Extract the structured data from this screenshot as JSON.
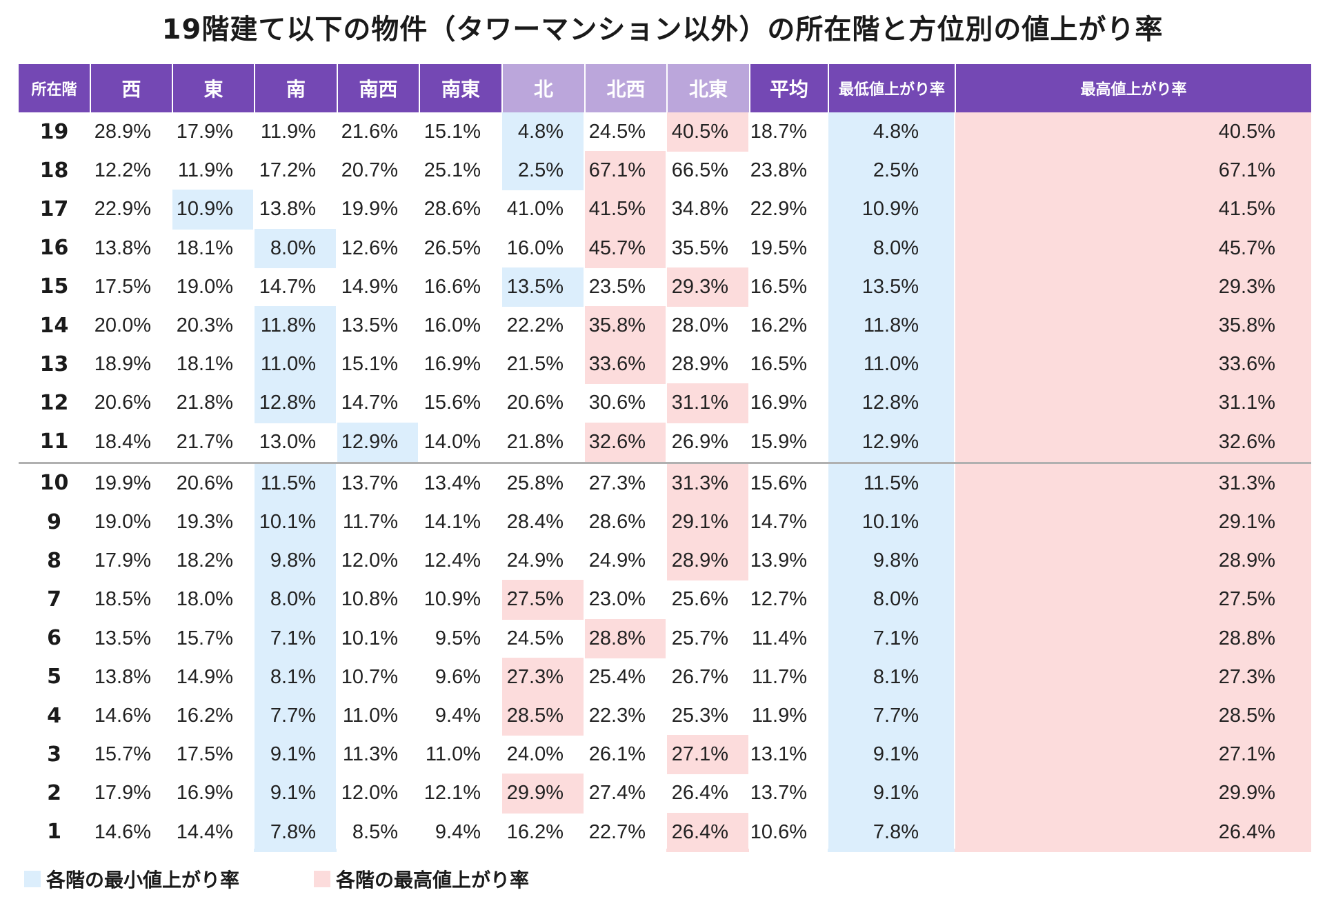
{
  "title": "19階建て以下の物件（タワーマンション以外）の所在階と方位別の値上がり率",
  "colors": {
    "header_dark": "#7448b4",
    "header_light": "#bba6db",
    "min_highlight": "#dceefc",
    "max_highlight": "#fcdcdc",
    "separator": "#b0b0b0"
  },
  "legend": {
    "min_label": "各階の最小値上がり率",
    "max_label": "各階の最高値上がり率"
  },
  "chart_data": {
    "type": "table",
    "title": "19階建て以下の物件（タワーマンション以外）の所在階と方位別の値上がり率",
    "columns": [
      "所在階",
      "西",
      "東",
      "南",
      "南西",
      "南東",
      "北",
      "北西",
      "北東",
      "平均",
      "最低値上がり率",
      "最高値上がり率"
    ],
    "rows": [
      {
        "floor": "19",
        "values": [
          "28.9%",
          "17.9%",
          "11.9%",
          "21.6%",
          "15.1%",
          "4.8%",
          "24.5%",
          "40.5%",
          "18.7%",
          "4.8%",
          "40.5%"
        ],
        "min_col": 5,
        "max_col": 7
      },
      {
        "floor": "18",
        "values": [
          "12.2%",
          "11.9%",
          "17.2%",
          "20.7%",
          "25.1%",
          "2.5%",
          "67.1%",
          "66.5%",
          "23.8%",
          "2.5%",
          "67.1%"
        ],
        "min_col": 5,
        "max_col": 6
      },
      {
        "floor": "17",
        "values": [
          "22.9%",
          "10.9%",
          "13.8%",
          "19.9%",
          "28.6%",
          "41.0%",
          "41.5%",
          "34.8%",
          "22.9%",
          "10.9%",
          "41.5%"
        ],
        "min_col": 1,
        "max_col": 6
      },
      {
        "floor": "16",
        "values": [
          "13.8%",
          "18.1%",
          "8.0%",
          "12.6%",
          "26.5%",
          "16.0%",
          "45.7%",
          "35.5%",
          "19.5%",
          "8.0%",
          "45.7%"
        ],
        "min_col": 2,
        "max_col": 6
      },
      {
        "floor": "15",
        "values": [
          "17.5%",
          "19.0%",
          "14.7%",
          "14.9%",
          "16.6%",
          "13.5%",
          "23.5%",
          "29.3%",
          "16.5%",
          "13.5%",
          "29.3%"
        ],
        "min_col": 5,
        "max_col": 7
      },
      {
        "floor": "14",
        "values": [
          "20.0%",
          "20.3%",
          "11.8%",
          "13.5%",
          "16.0%",
          "22.2%",
          "35.8%",
          "28.0%",
          "16.2%",
          "11.8%",
          "35.8%"
        ],
        "min_col": 2,
        "max_col": 6
      },
      {
        "floor": "13",
        "values": [
          "18.9%",
          "18.1%",
          "11.0%",
          "15.1%",
          "16.9%",
          "21.5%",
          "33.6%",
          "28.9%",
          "16.5%",
          "11.0%",
          "33.6%"
        ],
        "min_col": 2,
        "max_col": 6
      },
      {
        "floor": "12",
        "values": [
          "20.6%",
          "21.8%",
          "12.8%",
          "14.7%",
          "15.6%",
          "20.6%",
          "30.6%",
          "31.1%",
          "16.9%",
          "12.8%",
          "31.1%"
        ],
        "min_col": 2,
        "max_col": 7
      },
      {
        "floor": "11",
        "values": [
          "18.4%",
          "21.7%",
          "13.0%",
          "12.9%",
          "14.0%",
          "21.8%",
          "32.6%",
          "26.9%",
          "15.9%",
          "12.9%",
          "32.6%"
        ],
        "min_col": 3,
        "max_col": 6
      },
      {
        "floor": "10",
        "values": [
          "19.9%",
          "20.6%",
          "11.5%",
          "13.7%",
          "13.4%",
          "25.8%",
          "27.3%",
          "31.3%",
          "15.6%",
          "11.5%",
          "31.3%"
        ],
        "min_col": 2,
        "max_col": 7
      },
      {
        "floor": "9",
        "values": [
          "19.0%",
          "19.3%",
          "10.1%",
          "11.7%",
          "14.1%",
          "28.4%",
          "28.6%",
          "29.1%",
          "14.7%",
          "10.1%",
          "29.1%"
        ],
        "min_col": 2,
        "max_col": 7
      },
      {
        "floor": "8",
        "values": [
          "17.9%",
          "18.2%",
          "9.8%",
          "12.0%",
          "12.4%",
          "24.9%",
          "24.9%",
          "28.9%",
          "13.9%",
          "9.8%",
          "28.9%"
        ],
        "min_col": 2,
        "max_col": 7
      },
      {
        "floor": "7",
        "values": [
          "18.5%",
          "18.0%",
          "8.0%",
          "10.8%",
          "10.9%",
          "27.5%",
          "23.0%",
          "25.6%",
          "12.7%",
          "8.0%",
          "27.5%"
        ],
        "min_col": 2,
        "max_col": 5
      },
      {
        "floor": "6",
        "values": [
          "13.5%",
          "15.7%",
          "7.1%",
          "10.1%",
          "9.5%",
          "24.5%",
          "28.8%",
          "25.7%",
          "11.4%",
          "7.1%",
          "28.8%"
        ],
        "min_col": 2,
        "max_col": 6
      },
      {
        "floor": "5",
        "values": [
          "13.8%",
          "14.9%",
          "8.1%",
          "10.7%",
          "9.6%",
          "27.3%",
          "25.4%",
          "26.7%",
          "11.7%",
          "8.1%",
          "27.3%"
        ],
        "min_col": 2,
        "max_col": 5
      },
      {
        "floor": "4",
        "values": [
          "14.6%",
          "16.2%",
          "7.7%",
          "11.0%",
          "9.4%",
          "28.5%",
          "22.3%",
          "25.3%",
          "11.9%",
          "7.7%",
          "28.5%"
        ],
        "min_col": 2,
        "max_col": 5
      },
      {
        "floor": "3",
        "values": [
          "15.7%",
          "17.5%",
          "9.1%",
          "11.3%",
          "11.0%",
          "24.0%",
          "26.1%",
          "27.1%",
          "13.1%",
          "9.1%",
          "27.1%"
        ],
        "min_col": 2,
        "max_col": 7
      },
      {
        "floor": "2",
        "values": [
          "17.9%",
          "16.9%",
          "9.1%",
          "12.0%",
          "12.1%",
          "29.9%",
          "27.4%",
          "26.4%",
          "13.7%",
          "9.1%",
          "29.9%"
        ],
        "min_col": 2,
        "max_col": 5
      },
      {
        "floor": "1",
        "values": [
          "14.6%",
          "14.4%",
          "7.8%",
          "8.5%",
          "9.4%",
          "16.2%",
          "22.7%",
          "26.4%",
          "10.6%",
          "7.8%",
          "26.4%"
        ],
        "min_col": 2,
        "max_col": 7
      }
    ]
  }
}
